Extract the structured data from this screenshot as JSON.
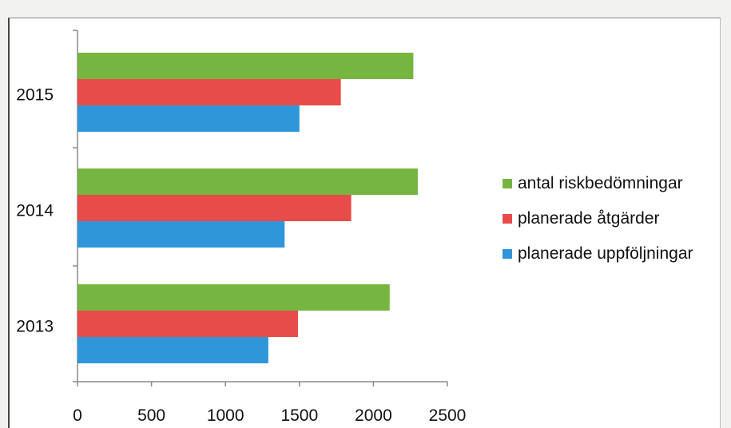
{
  "chart_data": {
    "type": "bar",
    "orientation": "horizontal",
    "categories": [
      "2013",
      "2014",
      "2015"
    ],
    "series": [
      {
        "name": "antal riskbedömningar",
        "color": "#77b541",
        "values": [
          2110,
          2300,
          2270
        ]
      },
      {
        "name": "planerade åtgärder",
        "color": "#e84c4a",
        "values": [
          1490,
          1850,
          1780
        ]
      },
      {
        "name": "planerade uppföljningar",
        "color": "#2f97d9",
        "values": [
          1290,
          1400,
          1500
        ]
      }
    ],
    "xlim": [
      0,
      2500
    ],
    "xticks": [
      "0",
      "500",
      "1000",
      "1500",
      "2000",
      "2500"
    ],
    "grid": false,
    "legend_position": "right"
  }
}
